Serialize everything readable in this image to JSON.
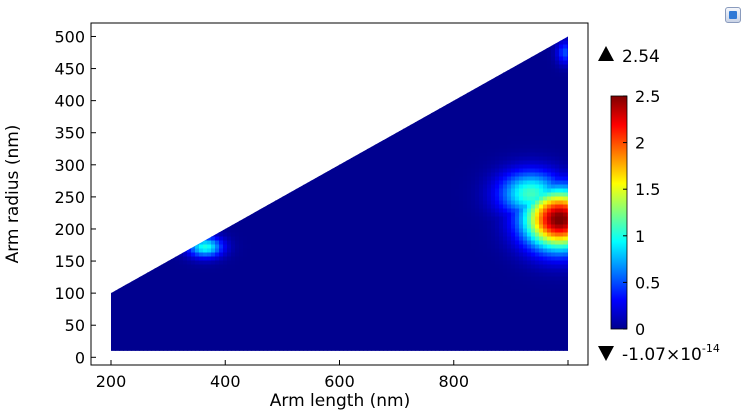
{
  "chart_data": {
    "type": "heatmap",
    "title": "",
    "xlabel": "Arm length (nm)",
    "ylabel": "Arm radius (nm)",
    "xlim": [
      165,
      1035
    ],
    "ylim": [
      -12,
      521
    ],
    "x_ticks": [
      200,
      400,
      600,
      800
    ],
    "x_tick_labels": [
      "200",
      "400",
      "600",
      "800"
    ],
    "y_ticks": [
      0,
      50,
      100,
      150,
      200,
      250,
      300,
      350,
      400,
      450,
      500
    ],
    "y_tick_labels": [
      "0",
      "50",
      "100",
      "150",
      "200",
      "250",
      "300",
      "350",
      "400",
      "450",
      "500"
    ],
    "domain": {
      "description_points": [
        [
          200,
          10
        ],
        [
          200,
          100
        ],
        [
          1000,
          500
        ],
        [
          1000,
          10
        ]
      ]
    },
    "colormap": "rainbow",
    "colorbar": {
      "min": 0,
      "max": 2.5,
      "ticks": [
        0,
        0.5,
        1,
        1.5,
        2,
        2.5
      ],
      "tick_labels": [
        "0",
        "0.5",
        "1",
        "1.5",
        "2",
        "2.5"
      ]
    },
    "max_value_label": "2.54",
    "min_value_label": "-1.07×10",
    "min_value_exponent": "-14",
    "hotspots": [
      {
        "x": 985,
        "y": 215,
        "value": 2.54,
        "sx": 60,
        "sy": 45
      },
      {
        "x": 935,
        "y": 255,
        "value": 1.1,
        "sx": 55,
        "sy": 35
      },
      {
        "x": 365,
        "y": 172,
        "value": 1.0,
        "sx": 30,
        "sy": 16
      },
      {
        "x": 995,
        "y": 475,
        "value": 0.5,
        "sx": 15,
        "sy": 18
      }
    ],
    "grid": false,
    "legend": "colorbar-right"
  }
}
